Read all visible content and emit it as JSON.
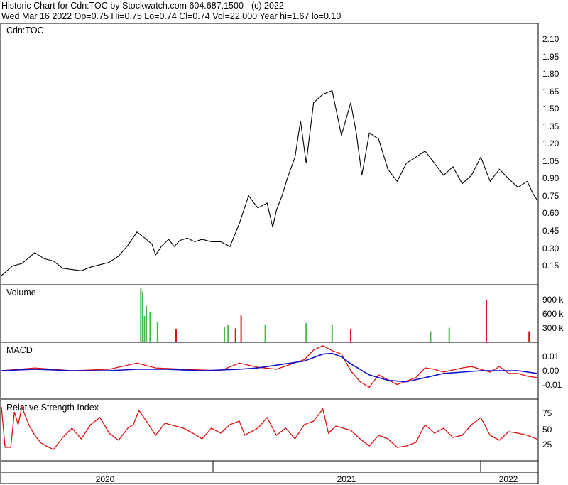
{
  "header": {
    "line1": "Historic Chart for Cdn:TOC by Stockwatch.com 604.687.1500 - (c) 2022",
    "line2": "Wed Mar 16 2022   Op=0.75  Hi=0.75  Lo=0.74  Cl=0.74  Vol=22,000  Year hi=1.67  lo=0.10"
  },
  "chart_data": [
    {
      "type": "line",
      "panel": "price",
      "title": "Cdn:TOC",
      "ylim": [
        0.05,
        2.2
      ],
      "yticks": [
        "0.15",
        "0.30",
        "0.45",
        "0.60",
        "0.75",
        "0.90",
        "1.05",
        "1.20",
        "1.35",
        "1.50",
        "1.65",
        "1.80",
        "1.95",
        "2.10"
      ],
      "line_color": "#000000",
      "x": [
        2019.32,
        2019.38,
        2019.43,
        2019.47,
        2019.5,
        2019.55,
        2019.6,
        2019.65,
        2019.7,
        2019.75,
        2019.8,
        2019.85,
        2019.9,
        2019.95,
        2020.0,
        2020.05,
        2020.1,
        2020.13,
        2020.15,
        2020.18,
        2020.22,
        2020.25,
        2020.28,
        2020.32,
        2020.36,
        2020.4,
        2020.45,
        2020.5,
        2020.55,
        2020.6,
        2020.65,
        2020.7,
        2020.75,
        2020.78,
        2020.8,
        2020.83,
        2020.86,
        2020.9,
        2020.93,
        2020.96,
        2021.0,
        2021.05,
        2021.1,
        2021.15,
        2021.2,
        2021.23,
        2021.26,
        2021.3,
        2021.35,
        2021.4,
        2021.45,
        2021.5,
        2021.55,
        2021.6,
        2021.65,
        2021.7,
        2021.75,
        2021.8,
        2021.85,
        2021.9,
        2021.95,
        2022.0,
        2022.05,
        2022.1,
        2022.15,
        2022.18,
        2022.205
      ],
      "values": [
        0.12,
        0.2,
        0.22,
        0.27,
        0.31,
        0.26,
        0.24,
        0.18,
        0.17,
        0.16,
        0.19,
        0.21,
        0.23,
        0.28,
        0.37,
        0.48,
        0.42,
        0.38,
        0.29,
        0.36,
        0.42,
        0.36,
        0.41,
        0.43,
        0.4,
        0.42,
        0.4,
        0.4,
        0.36,
        0.55,
        0.78,
        0.68,
        0.72,
        0.52,
        0.66,
        0.78,
        0.93,
        1.1,
        1.4,
        1.05,
        1.55,
        1.62,
        1.65,
        1.28,
        1.55,
        1.3,
        0.95,
        1.3,
        1.25,
        1.0,
        0.9,
        1.05,
        1.1,
        1.15,
        1.05,
        0.95,
        1.02,
        0.88,
        0.95,
        1.1,
        0.9,
        1.0,
        0.92,
        0.85,
        0.9,
        0.8,
        0.74
      ]
    },
    {
      "type": "bar",
      "panel": "volume",
      "title": "Volume",
      "ylim": [
        0,
        1100000
      ],
      "yticks": [
        "300 k",
        "600 k",
        "900 k"
      ],
      "colors": {
        "up": "#44bb44",
        "down": "#dd1111"
      },
      "bars": [
        {
          "x": 2020.07,
          "v": 1050000,
          "c": "up"
        },
        {
          "x": 2020.08,
          "v": 980000,
          "c": "up"
        },
        {
          "x": 2020.1,
          "v": 700000,
          "c": "up"
        },
        {
          "x": 2020.12,
          "v": 580000,
          "c": "up"
        },
        {
          "x": 2020.09,
          "v": 500000,
          "c": "up"
        },
        {
          "x": 2020.16,
          "v": 380000,
          "c": "up"
        },
        {
          "x": 2020.26,
          "v": 250000,
          "c": "down"
        },
        {
          "x": 2020.52,
          "v": 280000,
          "c": "up"
        },
        {
          "x": 2020.54,
          "v": 320000,
          "c": "up"
        },
        {
          "x": 2020.58,
          "v": 260000,
          "c": "down"
        },
        {
          "x": 2020.61,
          "v": 510000,
          "c": "down"
        },
        {
          "x": 2020.74,
          "v": 320000,
          "c": "up"
        },
        {
          "x": 2020.96,
          "v": 360000,
          "c": "up"
        },
        {
          "x": 2021.1,
          "v": 320000,
          "c": "up"
        },
        {
          "x": 2021.2,
          "v": 250000,
          "c": "down"
        },
        {
          "x": 2021.63,
          "v": 200000,
          "c": "up"
        },
        {
          "x": 2021.73,
          "v": 270000,
          "c": "up"
        },
        {
          "x": 2021.93,
          "v": 820000,
          "c": "down"
        },
        {
          "x": 2022.16,
          "v": 200000,
          "c": "down"
        }
      ]
    },
    {
      "type": "line",
      "panel": "macd",
      "title": "MACD",
      "ylim": [
        -0.02,
        0.02
      ],
      "yticks": [
        "-0.01",
        "0.00",
        "0.01"
      ],
      "series": [
        {
          "color": "#dd1111",
          "x": [
            2019.32,
            2019.5,
            2019.7,
            2019.9,
            2020.05,
            2020.15,
            2020.3,
            2020.5,
            2020.6,
            2020.7,
            2020.8,
            2020.95,
            2021.0,
            2021.05,
            2021.1,
            2021.15,
            2021.2,
            2021.25,
            2021.3,
            2021.35,
            2021.45,
            2021.55,
            2021.6,
            2021.65,
            2021.7,
            2021.8,
            2021.85,
            2021.95,
            2022.0,
            2022.05,
            2022.1,
            2022.15,
            2022.205
          ],
          "values": [
            0.0,
            0.002,
            0.0,
            0.001,
            0.0055,
            0.002,
            0.001,
            0.0,
            0.0055,
            0.0025,
            0.001,
            0.008,
            0.015,
            0.018,
            0.0145,
            0.012,
            0.0,
            -0.008,
            -0.012,
            -0.003,
            -0.01,
            -0.005,
            0.002,
            0.001,
            -0.001,
            0.002,
            0.003,
            -0.001,
            0.003,
            -0.002,
            -0.002,
            -0.004,
            -0.005
          ]
        },
        {
          "color": "#1111cc",
          "x": [
            2019.32,
            2019.5,
            2019.7,
            2019.9,
            2020.05,
            2020.2,
            2020.4,
            2020.6,
            2020.7,
            2020.85,
            2020.95,
            2021.05,
            2021.1,
            2021.15,
            2021.2,
            2021.3,
            2021.4,
            2021.5,
            2021.6,
            2021.7,
            2021.8,
            2021.9,
            2022.0,
            2022.1,
            2022.205
          ],
          "values": [
            0.0,
            0.001,
            0.0,
            0.0,
            0.001,
            0.001,
            0.0,
            0.001,
            0.002,
            0.005,
            0.007,
            0.012,
            0.0125,
            0.01,
            0.005,
            -0.003,
            -0.007,
            -0.008,
            -0.005,
            -0.002,
            -0.001,
            0.0,
            0.0,
            0.0,
            -0.002
          ]
        }
      ]
    },
    {
      "type": "line",
      "panel": "rsi",
      "title": "Relative Strength Index",
      "ylim": [
        10,
        95
      ],
      "yticks": [
        "25",
        "50",
        "75"
      ],
      "line_color": "#dd1111",
      "x": [
        2019.32,
        2019.34,
        2019.37,
        2019.39,
        2019.41,
        2019.43,
        2019.47,
        2019.5,
        2019.53,
        2019.56,
        2019.6,
        2019.65,
        2019.7,
        2019.75,
        2019.8,
        2019.85,
        2019.9,
        2019.95,
        2020.0,
        2020.03,
        2020.06,
        2020.1,
        2020.15,
        2020.2,
        2020.3,
        2020.35,
        2020.4,
        2020.45,
        2020.5,
        2020.55,
        2020.6,
        2020.63,
        2020.7,
        2020.75,
        2020.8,
        2020.85,
        2020.9,
        2020.95,
        2021.0,
        2021.05,
        2021.08,
        2021.12,
        2021.16,
        2021.2,
        2021.25,
        2021.3,
        2021.35,
        2021.4,
        2021.45,
        2021.5,
        2021.55,
        2021.6,
        2021.65,
        2021.7,
        2021.75,
        2021.8,
        2021.85,
        2021.9,
        2021.95,
        2022.0,
        2022.05,
        2022.1,
        2022.15,
        2022.2,
        2022.205
      ],
      "values": [
        85,
        28,
        28,
        78,
        60,
        85,
        58,
        45,
        35,
        30,
        25,
        42,
        55,
        40,
        60,
        70,
        48,
        38,
        55,
        60,
        80,
        65,
        45,
        62,
        55,
        48,
        40,
        55,
        48,
        60,
        65,
        45,
        55,
        70,
        45,
        55,
        40,
        60,
        65,
        82,
        48,
        58,
        55,
        52,
        40,
        30,
        45,
        40,
        28,
        30,
        35,
        60,
        48,
        55,
        42,
        45,
        60,
        70,
        45,
        38,
        50,
        48,
        45,
        40,
        38
      ]
    },
    {
      "type": "axis",
      "panel": "years",
      "labels": [
        "2020",
        "2021",
        "2022"
      ]
    }
  ]
}
